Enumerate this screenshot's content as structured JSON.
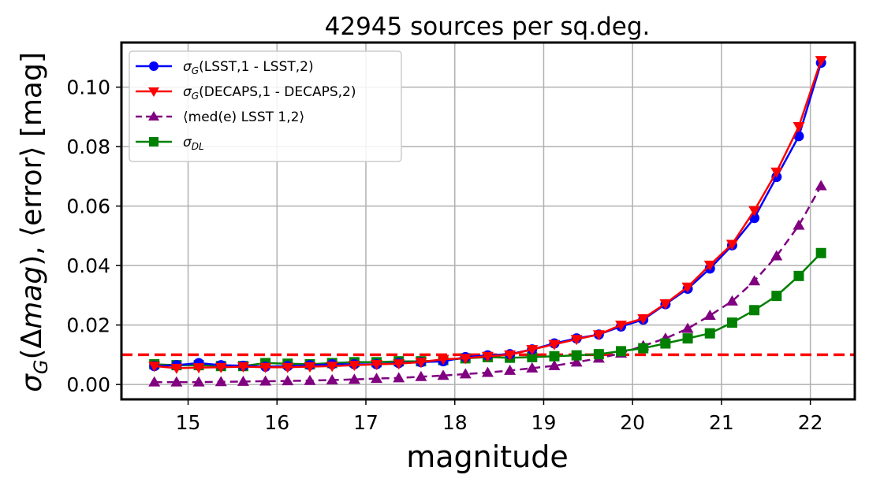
{
  "chart_data": {
    "type": "line",
    "title": "42945 sources per sq.deg.",
    "xlabel": "magnitude",
    "ylabel": "σ_G(Δmag), ⟨error⟩ [mag]",
    "xlim": [
      14.25,
      22.5
    ],
    "ylim": [
      -0.005,
      0.115
    ],
    "xticks": [
      15,
      16,
      17,
      18,
      19,
      20,
      21,
      22
    ],
    "yticks": [
      0.0,
      0.02,
      0.04,
      0.06,
      0.08,
      0.1
    ],
    "ytick_labels": [
      "0.00",
      "0.02",
      "0.04",
      "0.06",
      "0.08",
      "0.10"
    ],
    "grid": true,
    "legend_position": "upper-left",
    "x": [
      14.62,
      14.87,
      15.12,
      15.37,
      15.62,
      15.87,
      16.12,
      16.37,
      16.62,
      16.87,
      17.12,
      17.37,
      17.62,
      17.87,
      18.12,
      18.37,
      18.62,
      18.87,
      19.12,
      19.37,
      19.62,
      19.87,
      20.12,
      20.37,
      20.62,
      20.87,
      21.12,
      21.37,
      21.62,
      21.87,
      22.12
    ],
    "series": [
      {
        "name": "σ_G(LSST,1 - LSST,2)",
        "color": "#0000ff",
        "marker": "circle",
        "linestyle": "solid",
        "values": [
          0.0062,
          0.0065,
          0.0072,
          0.0065,
          0.0063,
          0.006,
          0.0062,
          0.0065,
          0.0068,
          0.0068,
          0.0068,
          0.0072,
          0.0075,
          0.0078,
          0.0092,
          0.0098,
          0.0102,
          0.0118,
          0.0138,
          0.0155,
          0.0168,
          0.0195,
          0.0218,
          0.027,
          0.0322,
          0.039,
          0.0468,
          0.056,
          0.0698,
          0.0835,
          0.1082
        ]
      },
      {
        "name": "σ_G(DECAPS,1 - DECAPS,2)",
        "color": "#ff0000",
        "marker": "triangle-down",
        "linestyle": "solid",
        "values": [
          0.0062,
          0.0055,
          0.0057,
          0.0058,
          0.006,
          0.0058,
          0.0058,
          0.006,
          0.0062,
          0.0065,
          0.0068,
          0.007,
          0.0075,
          0.0085,
          0.0088,
          0.0095,
          0.01,
          0.0118,
          0.0135,
          0.0152,
          0.0168,
          0.02,
          0.0222,
          0.0272,
          0.0328,
          0.0402,
          0.0472,
          0.0585,
          0.0715,
          0.0868,
          0.109
        ]
      },
      {
        "name": "⟨med(e)  LSST 1,2⟩",
        "color": "#800080",
        "marker": "triangle-up",
        "linestyle": "dashed",
        "values": [
          0.0008,
          0.0008,
          0.0008,
          0.0009,
          0.001,
          0.0011,
          0.0012,
          0.0013,
          0.0015,
          0.0017,
          0.002,
          0.0022,
          0.0026,
          0.003,
          0.0035,
          0.004,
          0.0047,
          0.0055,
          0.0063,
          0.0075,
          0.0088,
          0.0105,
          0.013,
          0.0155,
          0.0188,
          0.0232,
          0.028,
          0.0348,
          0.0432,
          0.0535,
          0.0668
        ]
      },
      {
        "name": "σ_DL",
        "color": "#008000",
        "marker": "square",
        "linestyle": "solid",
        "values": [
          0.0068,
          0.0065,
          0.0065,
          0.0062,
          0.0062,
          0.0072,
          0.007,
          0.0068,
          0.0072,
          0.0075,
          0.0075,
          0.0078,
          0.0078,
          0.0082,
          0.0088,
          0.0092,
          0.009,
          0.0092,
          0.0095,
          0.0098,
          0.0102,
          0.0112,
          0.0122,
          0.0138,
          0.0155,
          0.0172,
          0.0208,
          0.025,
          0.0298,
          0.0365,
          0.0442
        ]
      }
    ],
    "reference_line": {
      "y": 0.01,
      "color": "#ff0000",
      "linestyle": "dashed"
    }
  }
}
